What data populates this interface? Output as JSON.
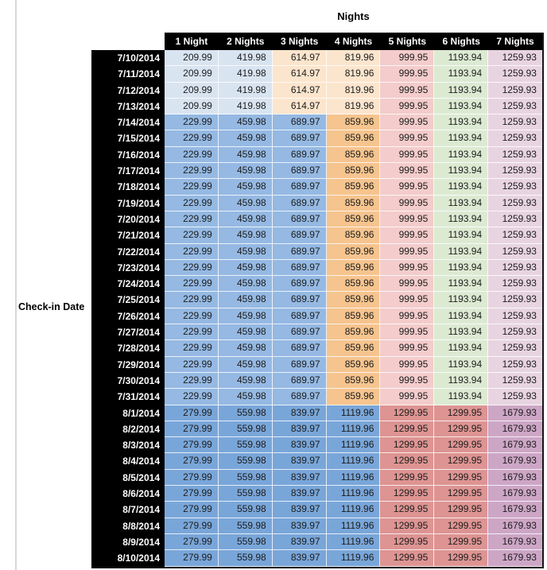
{
  "table_title": "Nights",
  "row_axis_label": "Check-in Date",
  "columns": [
    "1 Night",
    "2 Nights",
    "3 Nights",
    "4 Nights",
    "5 Nights",
    "6 Nights",
    "7 Nights"
  ],
  "colors": {
    "header_bg": "#000000",
    "header_text": "#ffffff",
    "value_text": "#1c1c1c",
    "band1_blue": "#d9e4f1",
    "band1_orange": "#fce5cd",
    "light_pink": "#f3cccb",
    "light_green": "#dcead2",
    "light_lavender": "#e8d4e1",
    "band2_blue": "#95b9e3",
    "band2_orange": "#f6c48e",
    "band3_blue": "#79a6d9",
    "band3_red": "#dd9492",
    "band3_mauve": "#cda6c6"
  },
  "bands": [
    {
      "name": "early-july",
      "dates": [
        "7/10/2014",
        "7/11/2014",
        "7/12/2014",
        "7/13/2014"
      ],
      "values": [
        "209.99",
        "419.98",
        "614.97",
        "819.96",
        "999.95",
        "1193.94",
        "1259.93"
      ],
      "cell_colors": [
        "#d9e4f1",
        "#d9e4f1",
        "#fce5cd",
        "#fce5cd",
        "#f3cccb",
        "#dcead2",
        "#e8d4e1"
      ]
    },
    {
      "name": "mid-late-july",
      "dates": [
        "7/14/2014",
        "7/15/2014",
        "7/16/2014",
        "7/17/2014",
        "7/18/2014",
        "7/19/2014",
        "7/20/2014",
        "7/21/2014",
        "7/22/2014",
        "7/23/2014",
        "7/24/2014",
        "7/25/2014",
        "7/26/2014",
        "7/27/2014",
        "7/28/2014",
        "7/29/2014",
        "7/30/2014",
        "7/31/2014"
      ],
      "values": [
        "229.99",
        "459.98",
        "689.97",
        "859.96",
        "999.95",
        "1193.94",
        "1259.93"
      ],
      "cell_colors": [
        "#95b9e3",
        "#95b9e3",
        "#95b9e3",
        "#f6c48e",
        "#f3cccb",
        "#dcead2",
        "#e8d4e1"
      ]
    },
    {
      "name": "august",
      "dates": [
        "8/1/2014",
        "8/2/2014",
        "8/3/2014",
        "8/4/2014",
        "8/5/2014",
        "8/6/2014",
        "8/7/2014",
        "8/8/2014",
        "8/9/2014",
        "8/10/2014"
      ],
      "values": [
        "279.99",
        "559.98",
        "839.97",
        "1119.96",
        "1299.95",
        "1299.95",
        "1679.93"
      ],
      "cell_colors": [
        "#79a6d9",
        "#79a6d9",
        "#79a6d9",
        "#79a6d9",
        "#dd9492",
        "#dd9492",
        "#cda6c6"
      ]
    }
  ],
  "chart_data": {
    "type": "table",
    "title": "Nights",
    "row_label": "Check-in Date",
    "columns": [
      "1 Night",
      "2 Nights",
      "3 Nights",
      "4 Nights",
      "5 Nights",
      "6 Nights",
      "7 Nights"
    ],
    "rows": [
      [
        "7/10/2014",
        209.99,
        419.98,
        614.97,
        819.96,
        999.95,
        1193.94,
        1259.93
      ],
      [
        "7/11/2014",
        209.99,
        419.98,
        614.97,
        819.96,
        999.95,
        1193.94,
        1259.93
      ],
      [
        "7/12/2014",
        209.99,
        419.98,
        614.97,
        819.96,
        999.95,
        1193.94,
        1259.93
      ],
      [
        "7/13/2014",
        209.99,
        419.98,
        614.97,
        819.96,
        999.95,
        1193.94,
        1259.93
      ],
      [
        "7/14/2014",
        229.99,
        459.98,
        689.97,
        859.96,
        999.95,
        1193.94,
        1259.93
      ],
      [
        "7/15/2014",
        229.99,
        459.98,
        689.97,
        859.96,
        999.95,
        1193.94,
        1259.93
      ],
      [
        "7/16/2014",
        229.99,
        459.98,
        689.97,
        859.96,
        999.95,
        1193.94,
        1259.93
      ],
      [
        "7/17/2014",
        229.99,
        459.98,
        689.97,
        859.96,
        999.95,
        1193.94,
        1259.93
      ],
      [
        "7/18/2014",
        229.99,
        459.98,
        689.97,
        859.96,
        999.95,
        1193.94,
        1259.93
      ],
      [
        "7/19/2014",
        229.99,
        459.98,
        689.97,
        859.96,
        999.95,
        1193.94,
        1259.93
      ],
      [
        "7/20/2014",
        229.99,
        459.98,
        689.97,
        859.96,
        999.95,
        1193.94,
        1259.93
      ],
      [
        "7/21/2014",
        229.99,
        459.98,
        689.97,
        859.96,
        999.95,
        1193.94,
        1259.93
      ],
      [
        "7/22/2014",
        229.99,
        459.98,
        689.97,
        859.96,
        999.95,
        1193.94,
        1259.93
      ],
      [
        "7/23/2014",
        229.99,
        459.98,
        689.97,
        859.96,
        999.95,
        1193.94,
        1259.93
      ],
      [
        "7/24/2014",
        229.99,
        459.98,
        689.97,
        859.96,
        999.95,
        1193.94,
        1259.93
      ],
      [
        "7/25/2014",
        229.99,
        459.98,
        689.97,
        859.96,
        999.95,
        1193.94,
        1259.93
      ],
      [
        "7/26/2014",
        229.99,
        459.98,
        689.97,
        859.96,
        999.95,
        1193.94,
        1259.93
      ],
      [
        "7/27/2014",
        229.99,
        459.98,
        689.97,
        859.96,
        999.95,
        1193.94,
        1259.93
      ],
      [
        "7/28/2014",
        229.99,
        459.98,
        689.97,
        859.96,
        999.95,
        1193.94,
        1259.93
      ],
      [
        "7/29/2014",
        229.99,
        459.98,
        689.97,
        859.96,
        999.95,
        1193.94,
        1259.93
      ],
      [
        "7/30/2014",
        229.99,
        459.98,
        689.97,
        859.96,
        999.95,
        1193.94,
        1259.93
      ],
      [
        "7/31/2014",
        229.99,
        459.98,
        689.97,
        859.96,
        999.95,
        1193.94,
        1259.93
      ],
      [
        "8/1/2014",
        279.99,
        559.98,
        839.97,
        1119.96,
        1299.95,
        1299.95,
        1679.93
      ],
      [
        "8/2/2014",
        279.99,
        559.98,
        839.97,
        1119.96,
        1299.95,
        1299.95,
        1679.93
      ],
      [
        "8/3/2014",
        279.99,
        559.98,
        839.97,
        1119.96,
        1299.95,
        1299.95,
        1679.93
      ],
      [
        "8/4/2014",
        279.99,
        559.98,
        839.97,
        1119.96,
        1299.95,
        1299.95,
        1679.93
      ],
      [
        "8/5/2014",
        279.99,
        559.98,
        839.97,
        1119.96,
        1299.95,
        1299.95,
        1679.93
      ],
      [
        "8/6/2014",
        279.99,
        559.98,
        839.97,
        1119.96,
        1299.95,
        1299.95,
        1679.93
      ],
      [
        "8/7/2014",
        279.99,
        559.98,
        839.97,
        1119.96,
        1299.95,
        1299.95,
        1679.93
      ],
      [
        "8/8/2014",
        279.99,
        559.98,
        839.97,
        1119.96,
        1299.95,
        1299.95,
        1679.93
      ],
      [
        "8/9/2014",
        279.99,
        559.98,
        839.97,
        1119.96,
        1299.95,
        1299.95,
        1679.93
      ],
      [
        "8/10/2014",
        279.99,
        559.98,
        839.97,
        1119.96,
        1299.95,
        1299.95,
        1679.93
      ]
    ]
  }
}
